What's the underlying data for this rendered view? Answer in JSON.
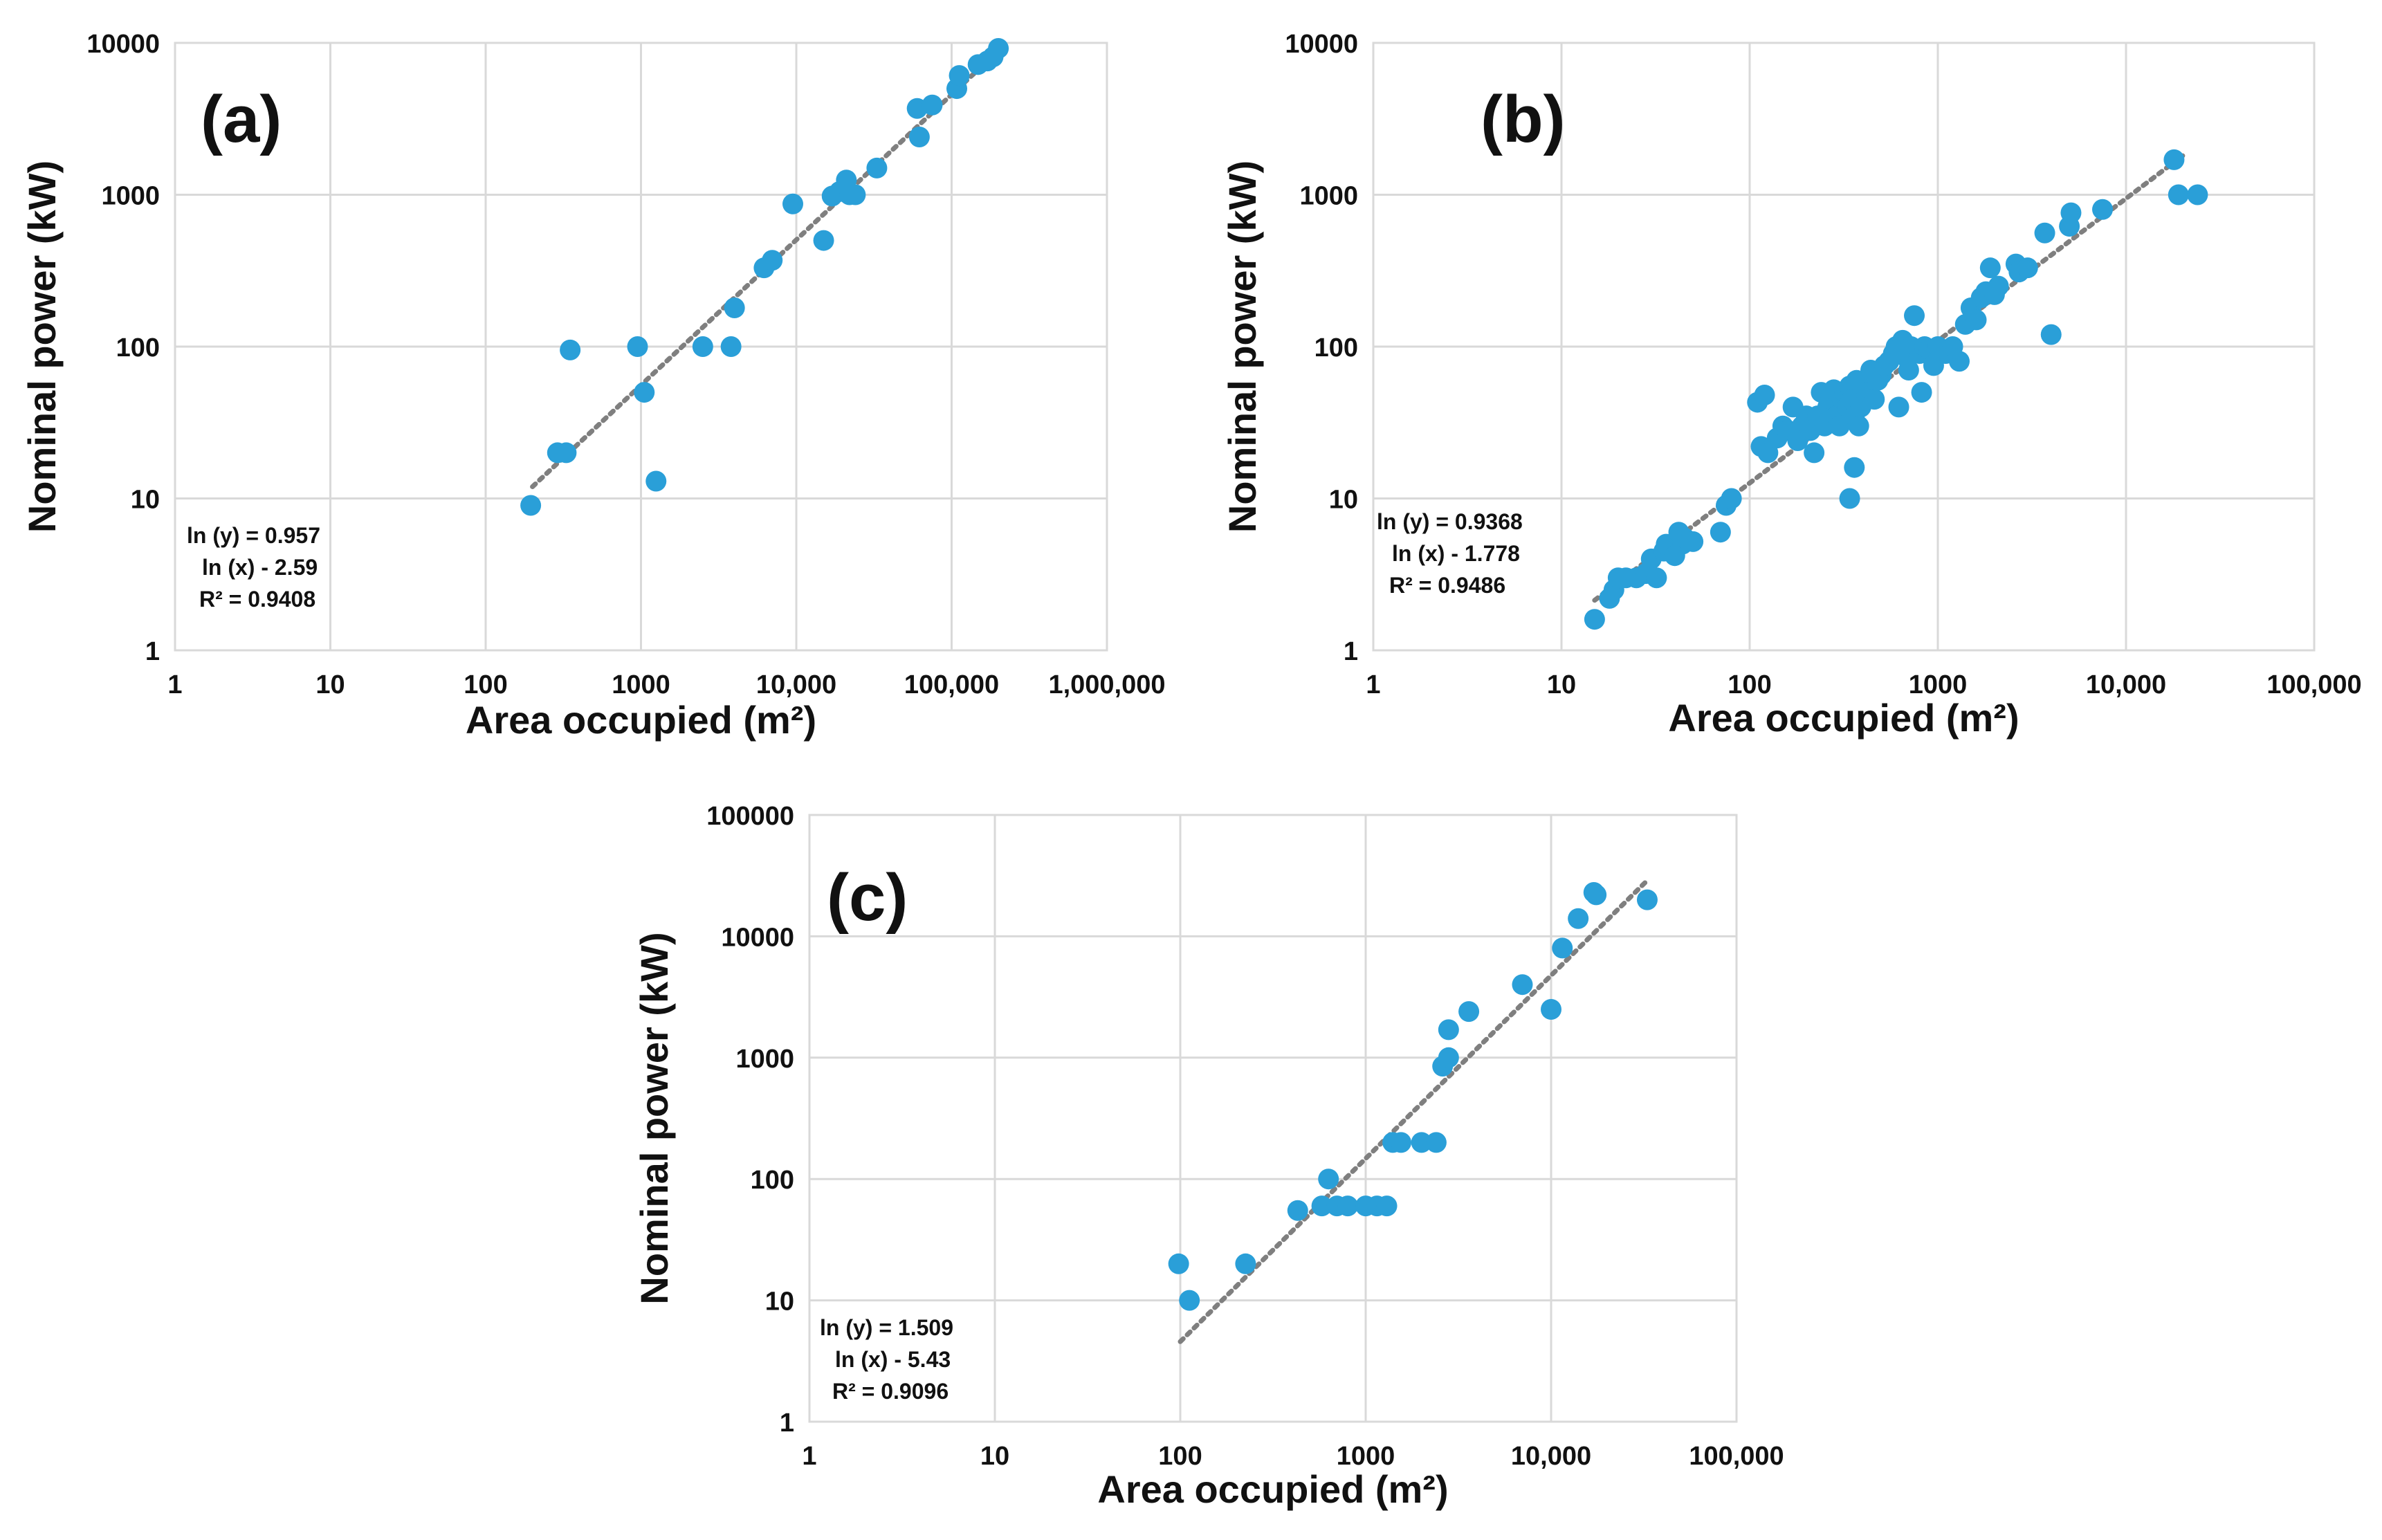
{
  "figure": {
    "marker_color": "#2a9fd8",
    "trend_color": "#7f7f7f",
    "grid_color": "#d9d9d9"
  },
  "chart_data": [
    {
      "id": "a",
      "type": "scatter",
      "panel_label": "(a)",
      "xlabel": "Area occupied (m²)",
      "ylabel": "Nominal power (kW)",
      "xscale": "log",
      "yscale": "log",
      "xlim": [
        1,
        1000000
      ],
      "ylim": [
        1,
        10000
      ],
      "xticks": [
        1,
        10,
        100,
        1000,
        10000,
        100000,
        1000000
      ],
      "xtick_labels": [
        "1",
        "10",
        "100",
        "1000",
        "10,000",
        "100,000",
        "1,000,000"
      ],
      "yticks": [
        1,
        10,
        100,
        1000,
        10000
      ],
      "ytick_labels": [
        "1",
        "10",
        "100",
        "1000",
        "10000"
      ],
      "grid": true,
      "equation": [
        "ln (y) = 0.957",
        "ln (x) - 2.59",
        "R² = 0.9408"
      ],
      "trendline": {
        "slope": 0.957,
        "intercept": -2.59,
        "x_range": [
          200,
          210000
        ]
      },
      "x": [
        195,
        290,
        330,
        350,
        950,
        1050,
        1250,
        2500,
        3800,
        4000,
        6200,
        7000,
        9500,
        15000,
        17000,
        19000,
        21000,
        22000,
        24000,
        33000,
        60000,
        62000,
        75000,
        108000,
        112000,
        148000,
        170000,
        185000,
        200000
      ],
      "y": [
        9,
        20,
        20,
        95,
        100,
        50,
        13,
        100,
        100,
        180,
        330,
        370,
        870,
        500,
        980,
        1050,
        1250,
        1000,
        1000,
        1500,
        3700,
        2400,
        3900,
        5000,
        6100,
        7200,
        7600,
        8100,
        9200
      ]
    },
    {
      "id": "b",
      "type": "scatter",
      "panel_label": "(b)",
      "xlabel": "Area occupied (m²)",
      "ylabel": "Nominal power (kW)",
      "xscale": "log",
      "yscale": "log",
      "xlim": [
        1,
        100000
      ],
      "ylim": [
        1,
        10000
      ],
      "xticks": [
        1,
        10,
        100,
        1000,
        10000,
        100000
      ],
      "xtick_labels": [
        "1",
        "10",
        "100",
        "1000",
        "10,000",
        "100,000"
      ],
      "yticks": [
        1,
        10,
        100,
        1000,
        10000
      ],
      "ytick_labels": [
        "1",
        "10",
        "100",
        "1000",
        "10000"
      ],
      "grid": true,
      "equation": [
        "ln (y) = 0.9368",
        "ln (x) - 1.778",
        "R² = 0.9486"
      ],
      "trendline": {
        "slope": 0.9368,
        "intercept": -1.778,
        "x_range": [
          15,
          20000
        ]
      },
      "x": [
        15,
        18,
        19,
        20,
        22,
        25,
        28,
        30,
        32,
        35,
        36,
        40,
        42,
        44,
        45,
        50,
        70,
        75,
        80,
        110,
        115,
        120,
        125,
        140,
        150,
        160,
        170,
        180,
        190,
        200,
        210,
        220,
        230,
        240,
        250,
        260,
        270,
        280,
        290,
        300,
        310,
        320,
        330,
        340,
        350,
        360,
        370,
        380,
        390,
        400,
        420,
        440,
        460,
        480,
        500,
        520,
        550,
        580,
        600,
        620,
        650,
        680,
        700,
        720,
        750,
        800,
        820,
        850,
        900,
        950,
        1000,
        1100,
        1200,
        1300,
        1400,
        1500,
        1600,
        1700,
        1800,
        1900,
        2000,
        2100,
        2600,
        2700,
        3000,
        3700,
        4000,
        5000,
        5100,
        7500,
        18000,
        19000,
        24000,
        360,
        340
      ],
      "y": [
        1.6,
        2.2,
        2.5,
        3,
        3,
        3,
        3.2,
        4,
        3,
        4.5,
        5,
        4.2,
        6,
        5,
        5.5,
        5.2,
        6,
        9,
        10,
        43,
        22,
        48,
        20,
        25,
        30,
        28,
        40,
        24,
        30,
        35,
        28,
        20,
        35,
        50,
        30,
        40,
        45,
        52,
        35,
        30,
        45,
        50,
        40,
        55,
        45,
        35,
        60,
        30,
        40,
        55,
        50,
        70,
        45,
        60,
        65,
        75,
        80,
        90,
        100,
        40,
        110,
        85,
        70,
        100,
        160,
        90,
        50,
        100,
        95,
        75,
        100,
        90,
        100,
        80,
        140,
        180,
        150,
        210,
        230,
        330,
        220,
        250,
        350,
        310,
        330,
        560,
        120,
        620,
        760,
        800,
        1700,
        1000,
        1000,
        16,
        10
      ]
    },
    {
      "id": "c",
      "type": "scatter",
      "panel_label": "(c)",
      "xlabel": "Area occupied (m²)",
      "ylabel": "Nominal power (kW)",
      "xscale": "log",
      "yscale": "log",
      "xlim": [
        1,
        100000
      ],
      "ylim": [
        1,
        100000
      ],
      "xticks": [
        1,
        10,
        100,
        1000,
        10000,
        100000
      ],
      "xtick_labels": [
        "1",
        "10",
        "100",
        "1000",
        "10,000",
        "100,000"
      ],
      "yticks": [
        1,
        10,
        100,
        1000,
        10000,
        100000
      ],
      "ytick_labels": [
        "1",
        "10",
        "100",
        "1000",
        "10000",
        "100000"
      ],
      "grid": true,
      "equation": [
        "ln (y) = 1.509",
        "ln (x) - 5.43",
        "R² = 0.9096"
      ],
      "trendline": {
        "slope": 1.509,
        "intercept": -5.43,
        "x_range": [
          100,
          33000
        ]
      },
      "x": [
        98,
        112,
        225,
        430,
        580,
        630,
        700,
        800,
        1000,
        1150,
        1300,
        1400,
        1550,
        2000,
        2400,
        2600,
        2800,
        2800,
        3600,
        7000,
        10000,
        11500,
        14000,
        17000,
        17500,
        33000
      ],
      "y": [
        20,
        10,
        20,
        55,
        60,
        100,
        60,
        60,
        60,
        60,
        60,
        200,
        200,
        200,
        200,
        850,
        1000,
        1700,
        2400,
        4000,
        2500,
        8000,
        14000,
        23000,
        22000,
        20000
      ]
    }
  ]
}
